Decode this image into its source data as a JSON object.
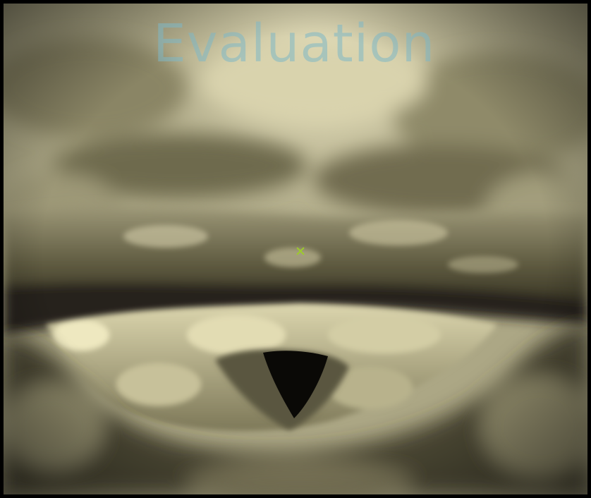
{
  "viewer": {
    "watermark_text": "Evaluation",
    "marker_icon": "cross-marker-icon",
    "colors": {
      "tissue_light": "#ddd7b1",
      "tissue_mid": "#a8a383",
      "tissue_shadow": "#3b3826",
      "watermark": "#7fb8c6",
      "marker": "#9ccc2a"
    }
  }
}
